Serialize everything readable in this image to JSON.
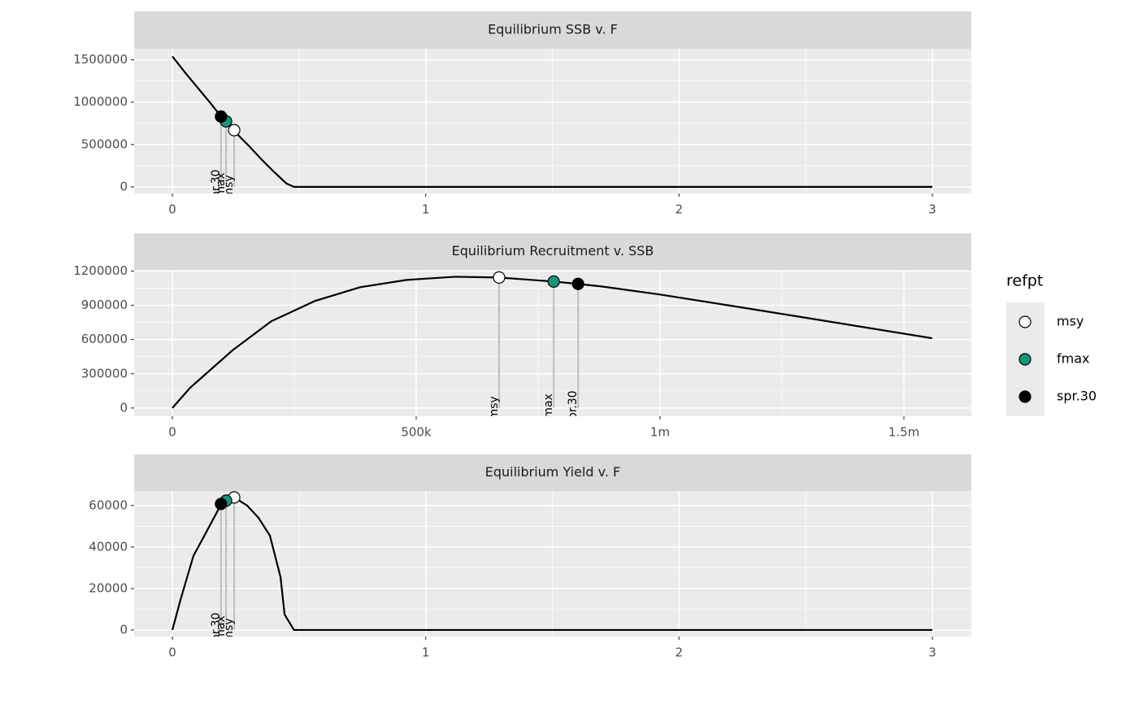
{
  "chart_data": [
    {
      "type": "line",
      "title": "Equilibrium SSB v. F",
      "x": [
        0,
        0.05,
        0.1,
        0.15,
        0.2,
        0.25,
        0.3,
        0.35,
        0.4,
        0.45,
        0.48,
        1,
        1.5,
        2,
        2.5,
        3
      ],
      "series": [
        {
          "color": "#000000",
          "values": [
            1540000,
            1350000,
            1170000,
            990000,
            800000,
            640000,
            490000,
            330000,
            180000,
            40000,
            0,
            0,
            0,
            0,
            0,
            0
          ]
        }
      ],
      "refpts": {
        "labels": [
          "msy",
          "fmax",
          "spr.30"
        ],
        "x": [
          0.244,
          0.212,
          0.192
        ],
        "y": [
          669000,
          774000,
          830000
        ]
      },
      "xlim": [
        -0.151,
        3.154
      ],
      "xticks": [
        0,
        1,
        2,
        3
      ],
      "ylim": [
        -78000,
        1630000
      ],
      "yticks": [
        0,
        500000,
        1000000,
        1500000
      ],
      "grid": true
    },
    {
      "type": "line",
      "title": "Equilibrium Recruitment v. SSB",
      "x": [
        0,
        36700,
        123000,
        203000,
        292000,
        385000,
        480000,
        580000,
        670000,
        782000,
        832000,
        880000,
        1000000,
        1147000,
        1313000,
        1558000
      ],
      "series": [
        {
          "color": "#000000",
          "values": [
            0,
            178000,
            504000,
            760000,
            937000,
            1058000,
            1122000,
            1150000,
            1143000,
            1108000,
            1087000,
            1065000,
            994000,
            895000,
            781000,
            611000
          ]
        }
      ],
      "refpts": {
        "labels": [
          "msy",
          "fmax",
          "spr.30"
        ],
        "x": [
          670000,
          782000,
          832000
        ],
        "y": [
          1143000,
          1108000,
          1087000
        ]
      },
      "xlim": [
        -78333,
        1638333
      ],
      "xticks": [
        0,
        {
          "value": 500000,
          "label": "500k"
        },
        {
          "value": 1000000,
          "label": "1m"
        },
        {
          "value": 1500000,
          "label": "1.5m"
        }
      ],
      "ylim": [
        -72000,
        1210000
      ],
      "yticks": [
        0,
        300000,
        600000,
        900000,
        1200000
      ],
      "grid": true
    },
    {
      "type": "line",
      "title": "Equilibrium Yield v. F",
      "x": [
        0,
        0.032,
        0.083,
        0.135,
        0.173,
        0.192,
        0.212,
        0.244,
        0.295,
        0.34,
        0.385,
        0.427,
        0.443,
        0.48,
        1,
        2,
        3
      ],
      "series": [
        {
          "color": "#000000",
          "values": [
            0,
            14500,
            35700,
            47450,
            56100,
            60800,
            62350,
            63900,
            60000,
            54100,
            45500,
            25500,
            7450,
            0,
            0,
            0,
            0
          ]
        }
      ],
      "refpts": {
        "labels": [
          "msy",
          "fmax",
          "spr.30"
        ],
        "x": [
          0.244,
          0.212,
          0.192
        ],
        "y": [
          63900,
          62350,
          60800
        ]
      },
      "xlim": [
        -0.151,
        3.154
      ],
      "xticks": [
        0,
        1,
        2,
        3
      ],
      "ylim": [
        -3150,
        67000
      ],
      "yticks": [
        0,
        20000,
        40000,
        60000
      ],
      "grid": true
    }
  ],
  "legend": {
    "title": "refpt",
    "items": [
      "msy",
      "fmax",
      "spr.30"
    ],
    "colors": [
      "#ffffff",
      "#15977a",
      "#000000"
    ]
  }
}
